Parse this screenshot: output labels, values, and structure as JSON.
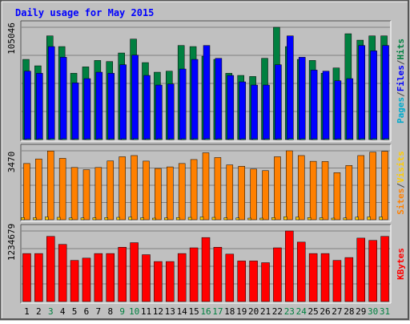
{
  "chart_data": {
    "type": "bar",
    "title": "Daily usage for May 2015",
    "days": [
      "1",
      "2",
      "3",
      "4",
      "5",
      "6",
      "7",
      "8",
      "9",
      "10",
      "11",
      "12",
      "13",
      "14",
      "15",
      "16",
      "17",
      "18",
      "19",
      "20",
      "21",
      "22",
      "23",
      "24",
      "25",
      "26",
      "27",
      "28",
      "29",
      "30",
      "31"
    ],
    "weekend_days": [
      "3",
      "9",
      "10",
      "16",
      "17",
      "23",
      "24",
      "30",
      "31"
    ],
    "panels": [
      {
        "name": "traffic",
        "max_label": "105046",
        "ymax": 105046,
        "side_label": [
          "Pages",
          "/",
          "Files",
          "/",
          "Hits"
        ],
        "side_colors": [
          "#00aacc",
          "#444444",
          "#0000ff",
          "#444444",
          "#008040"
        ],
        "series": [
          {
            "name": "Hits",
            "color": "#008040",
            "values": [
              75000,
              69000,
              97000,
              87000,
              62000,
              68000,
              74000,
              73000,
              81000,
              94000,
              72000,
              63000,
              64000,
              88000,
              87000,
              78000,
              75000,
              62000,
              60000,
              59000,
              76000,
              110000,
              87000,
              75000,
              74000,
              62000,
              67000,
              99000,
              93000,
              97000,
              97000
            ]
          },
          {
            "name": "Files",
            "color": "#0000ff",
            "values": [
              64000,
              62000,
              87000,
              77000,
              53000,
              57000,
              63000,
              62000,
              70000,
              79000,
              60000,
              51000,
              52000,
              66000,
              75000,
              88000,
              76000,
              60000,
              54000,
              51000,
              51000,
              70000,
              97000,
              77000,
              65000,
              64000,
              55000,
              57000,
              88000,
              83000,
              88000
            ]
          },
          {
            "name": "Pages",
            "color": "#00c0c0",
            "values": [
              700,
              650,
              900,
              800,
              600,
              620,
              700,
              680,
              750,
              850,
              650,
              580,
              600,
              760,
              800,
              850,
              750,
              650,
              600,
              570,
              600,
              700,
              950,
              800,
              700,
              680,
              600,
              640,
              850,
              820,
              870
            ]
          }
        ]
      },
      {
        "name": "visits",
        "max_label": "3470",
        "ymax": 3470,
        "side_label": [
          "Sites",
          "/",
          "Visits"
        ],
        "side_colors": [
          "#ff8000",
          "#444444",
          "#ffcc00"
        ],
        "series": [
          {
            "name": "Visits",
            "color": "#ff8000",
            "values": [
              2830,
              3060,
              3460,
              3090,
              2630,
              2520,
              2630,
              2960,
              3170,
              3230,
              2950,
              2580,
              2660,
              2830,
              3030,
              3370,
              3130,
              2760,
              2690,
              2550,
              2470,
              3170,
              3500,
              3230,
              2940,
              2930,
              2370,
              2730,
              3230,
              3400,
              3440
            ]
          },
          {
            "name": "Sites",
            "color": "#ff8000",
            "values": [
              110,
              100,
              140,
              120,
              90,
              90,
              100,
              110,
              120,
              130,
              100,
              80,
              90,
              110,
              120,
              140,
              120,
              100,
              90,
              80,
              80,
              110,
              150,
              130,
              110,
              100,
              80,
              90,
              130,
              140,
              140
            ]
          }
        ]
      },
      {
        "name": "kbytes",
        "max_label": "1234679",
        "ymax": 1234679,
        "side_label": [
          "KBytes"
        ],
        "side_colors": [
          "#ff0000"
        ],
        "series": [
          {
            "name": "KBytes",
            "color": "#ff0000",
            "values": [
              840000,
              840000,
              1140000,
              1000000,
              720000,
              760000,
              840000,
              840000,
              950000,
              1030000,
              820000,
              700000,
              700000,
              840000,
              940000,
              1120000,
              950000,
              830000,
              710000,
              710000,
              680000,
              940000,
              1260000,
              1040000,
              840000,
              840000,
              720000,
              770000,
              1110000,
              1070000,
              1140000
            ]
          }
        ]
      }
    ]
  }
}
